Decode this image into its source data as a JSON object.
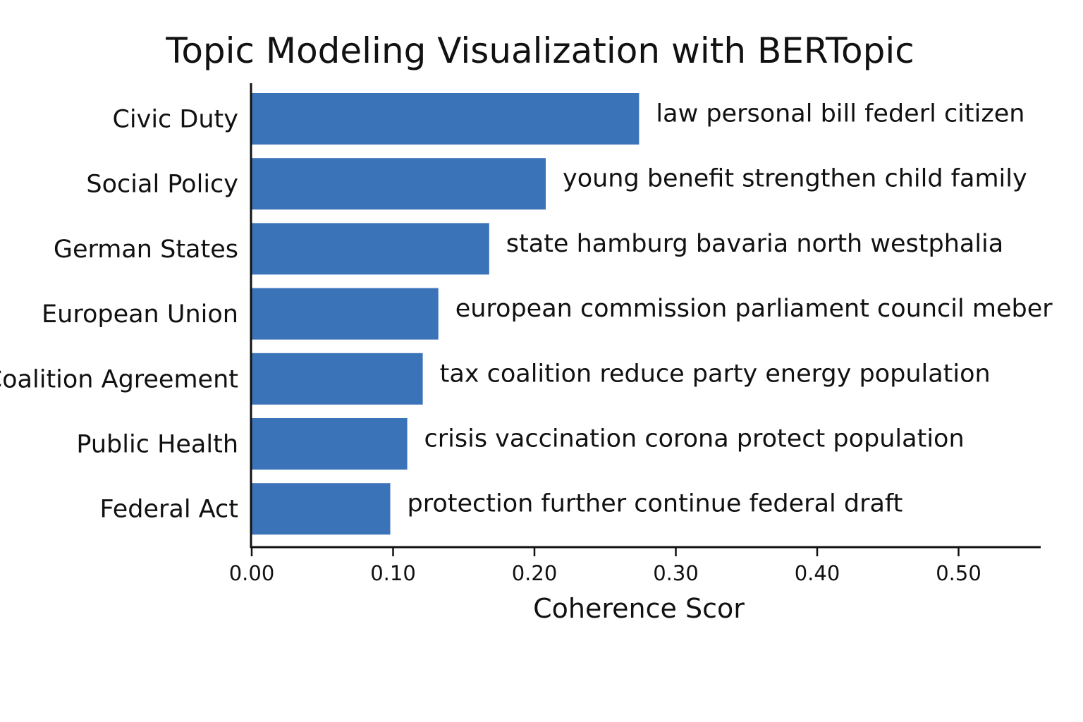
{
  "chart_data": {
    "type": "bar",
    "orientation": "horizontal",
    "title": "Topic Modeling Visualization with BERTopic",
    "xlabel": "Coherence Scor",
    "ylabel": "",
    "xlim": [
      0,
      0.56
    ],
    "xticks": [
      0.0,
      0.1,
      0.2,
      0.3,
      0.4,
      0.5
    ],
    "xtick_labels": [
      "0.00",
      "0.10",
      "0.20",
      "0.30",
      "0.40",
      "0.50"
    ],
    "grid": false,
    "legend": "none",
    "bar_color": "#3b73b9",
    "categories": [
      "Civic Duty",
      "Social Policy",
      "German States",
      "European Union",
      "Coalition Agreement",
      "Public Health",
      "Federal Act"
    ],
    "values": [
      0.274,
      0.208,
      0.168,
      0.132,
      0.121,
      0.11,
      0.098
    ],
    "annotations": [
      "law  personal  bill  federl  citizen",
      "young  benefit  strengthen  child  family",
      "state  hamburg  bavaria  north  westphalia",
      "european  commission  parliament  council  meber",
      "tax  coalition  reduce  party  energy  population",
      "crisis  vaccination  corona  protect  population",
      "protection  further  continue  federal  draft"
    ]
  }
}
